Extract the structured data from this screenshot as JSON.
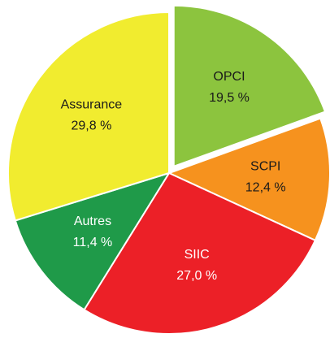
{
  "chart_data": {
    "type": "pie",
    "categories": [
      "OPCI",
      "SCPI",
      "SIIC",
      "Autres",
      "Assurance"
    ],
    "values": [
      19.5,
      12.4,
      27.0,
      11.4,
      29.8
    ],
    "value_labels": [
      "19,5 %",
      "12,4 %",
      "27,0 %",
      "11,4 %",
      "29,8 %"
    ],
    "colors": [
      "#8cc43e",
      "#f6921e",
      "#ec2027",
      "#1f9a49",
      "#f1ec2f"
    ],
    "label_colors": [
      "#1a1a1a",
      "#1a1a1a",
      "#ffffff",
      "#ffffff",
      "#1a1a1a"
    ],
    "exploded": [
      true,
      false,
      false,
      false,
      false
    ]
  }
}
